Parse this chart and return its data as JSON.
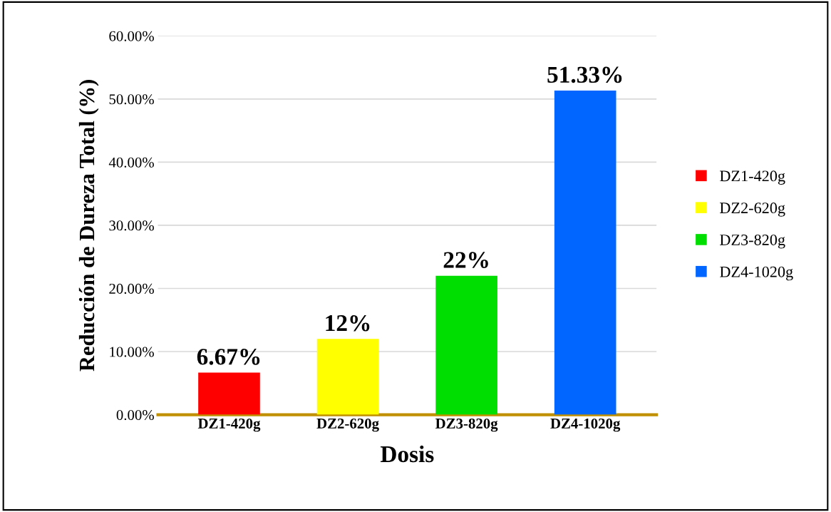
{
  "chart_data": {
    "type": "bar",
    "xlabel": "Dosis",
    "ylabel": "Reducción de Dureza Total (%)",
    "categories": [
      "DZ1-420g",
      "DZ2-620g",
      "DZ3-820g",
      "DZ4-1020g"
    ],
    "series": [
      {
        "name": "DZ1-420g",
        "color": "#ff0000",
        "values": [
          6.67,
          null,
          null,
          null
        ],
        "value_labels": [
          "6.67%",
          null,
          null,
          null
        ]
      },
      {
        "name": "DZ2-620g",
        "color": "#ffff00",
        "values": [
          null,
          12,
          null,
          null
        ],
        "value_labels": [
          null,
          "12%",
          null,
          null
        ]
      },
      {
        "name": "DZ3-820g",
        "color": "#00dd00",
        "values": [
          null,
          null,
          22,
          null
        ],
        "value_labels": [
          null,
          null,
          "22%",
          null
        ]
      },
      {
        "name": "DZ4-1020g",
        "color": "#0066ff",
        "values": [
          null,
          null,
          null,
          51.33
        ],
        "value_labels": [
          null,
          null,
          null,
          "51.33%"
        ]
      }
    ],
    "ylim": [
      0,
      60
    ],
    "yticks": [
      {
        "value": 0,
        "label": "0.00%"
      },
      {
        "value": 10,
        "label": "10.00%"
      },
      {
        "value": 20,
        "label": "20.00%"
      },
      {
        "value": 30,
        "label": "30.00%"
      },
      {
        "value": 40,
        "label": "40.00%"
      },
      {
        "value": 50,
        "label": "50.00%"
      },
      {
        "value": 60,
        "label": "60.00%"
      }
    ],
    "grid": "y",
    "legend": "right"
  }
}
